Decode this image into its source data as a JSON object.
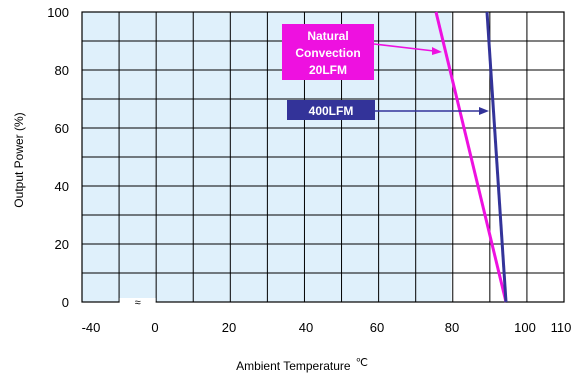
{
  "chart_data": {
    "type": "line",
    "title": "",
    "xlabel": "Ambient Temperature",
    "xlabel_unit": "℃",
    "ylabel": "Output Power  (%)",
    "xlim": [
      -40,
      110
    ],
    "ylim": [
      0,
      100
    ],
    "x_tick_labels": [
      "-40",
      "0",
      "20",
      "40",
      "60",
      "80",
      "100",
      "110"
    ],
    "x_tick_values": [
      -40,
      0,
      20,
      40,
      60,
      80,
      100,
      110
    ],
    "y_tick_labels": [
      "0",
      "20",
      "40",
      "60",
      "80",
      "100"
    ],
    "y_tick_values": [
      0,
      20,
      40,
      60,
      80,
      100
    ],
    "axis_break_symbol": "≈",
    "grid": true,
    "shaded_region": {
      "x": [
        -40,
        75
      ],
      "color": "#dff0fb"
    },
    "series": [
      {
        "name": "Natural Convection 20LFM",
        "label_lines": [
          "Natural",
          "Convection",
          "20LFM"
        ],
        "color": "#ee11e0",
        "x": [
          73,
          95
        ],
        "y": [
          100,
          0
        ]
      },
      {
        "name": "400LFM",
        "label_lines": [
          "400LFM"
        ],
        "color": "#333399",
        "x": [
          90,
          95
        ],
        "y": [
          100,
          0
        ]
      }
    ]
  }
}
